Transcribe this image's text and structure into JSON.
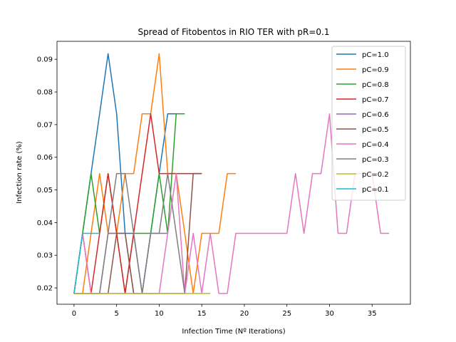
{
  "chart_data": {
    "type": "line",
    "title": "Spread of Fitobentos in RIO TER with pR=0.1",
    "xlabel": "Infection Time (Nº Iterations)",
    "ylabel": "Infection rate (%)",
    "xlim": [
      -2,
      39.5
    ],
    "ylim": [
      0.015,
      0.0955
    ],
    "xticks": [
      0,
      5,
      10,
      15,
      20,
      25,
      30,
      35
    ],
    "yticks": [
      0.02,
      0.03,
      0.04,
      0.05,
      0.06,
      0.07,
      0.08,
      0.09
    ],
    "ytick_labels": [
      "0.02",
      "0.03",
      "0.04",
      "0.05",
      "0.06",
      "0.07",
      "0.08",
      "0.09"
    ],
    "legend_position": "top-right",
    "series": [
      {
        "name": "pC=1.0",
        "color": "#1f77b4",
        "x": [
          0,
          1,
          2,
          3,
          4,
          5,
          6,
          7,
          8,
          9,
          10,
          11,
          12
        ],
        "y": [
          0.0183,
          0.0367,
          0.055,
          0.0733,
          0.0917,
          0.0733,
          0.0367,
          0.0367,
          0.0183,
          0.0367,
          0.055,
          0.0733,
          0.0733
        ]
      },
      {
        "name": "pC=0.9",
        "color": "#ff7f0e",
        "x": [
          0,
          1,
          2,
          3,
          4,
          5,
          6,
          7,
          8,
          9,
          10,
          11,
          12,
          13,
          14,
          15,
          16,
          17,
          18,
          19
        ],
        "y": [
          0.0183,
          0.0183,
          0.0367,
          0.055,
          0.0367,
          0.0367,
          0.055,
          0.055,
          0.0733,
          0.0733,
          0.0917,
          0.055,
          0.055,
          0.0367,
          0.0183,
          0.0367,
          0.0367,
          0.0367,
          0.055,
          0.055
        ]
      },
      {
        "name": "pC=0.8",
        "color": "#2ca02c",
        "x": [
          0,
          1,
          2,
          3,
          4,
          5,
          6,
          7,
          8,
          9,
          10,
          11,
          12,
          13
        ],
        "y": [
          0.0183,
          0.0367,
          0.055,
          0.0367,
          0.055,
          0.0367,
          0.0183,
          0.0367,
          0.0367,
          0.0367,
          0.055,
          0.0367,
          0.0733,
          0.0733
        ]
      },
      {
        "name": "pC=0.7",
        "color": "#d62728",
        "x": [
          0,
          1,
          2,
          3,
          4,
          5,
          6,
          7,
          8,
          9,
          10,
          11,
          12,
          13,
          14,
          15
        ],
        "y": [
          0.0183,
          0.0367,
          0.0183,
          0.0367,
          0.055,
          0.0367,
          0.0183,
          0.0367,
          0.055,
          0.0733,
          0.055,
          0.055,
          0.055,
          0.055,
          0.055,
          0.055
        ]
      },
      {
        "name": "pC=0.6",
        "color": "#9467bd",
        "x": [
          0,
          1,
          2,
          3,
          4,
          5,
          6,
          7,
          8,
          9,
          10,
          11
        ],
        "y": [
          0.0183,
          0.0183,
          0.0183,
          0.0183,
          0.0367,
          0.0367,
          0.0367,
          0.0183,
          0.0183,
          0.0367,
          0.0367,
          0.0367
        ]
      },
      {
        "name": "pC=0.5",
        "color": "#8c564b",
        "x": [
          0,
          1,
          2,
          3,
          4,
          5,
          6,
          7,
          8,
          9,
          10,
          11,
          12,
          13,
          14,
          15
        ],
        "y": [
          0.0183,
          0.0183,
          0.0183,
          0.0183,
          0.0183,
          0.0367,
          0.0367,
          0.0183,
          0.0183,
          0.0183,
          0.0183,
          0.0183,
          0.0183,
          0.0183,
          0.055,
          0.055
        ]
      },
      {
        "name": "pC=0.4",
        "color": "#e377c2",
        "x": [
          0,
          1,
          2,
          3,
          4,
          5,
          6,
          7,
          8,
          9,
          10,
          11,
          12,
          13,
          14,
          15,
          16,
          17,
          18,
          19,
          20,
          21,
          22,
          23,
          24,
          25,
          26,
          27,
          28,
          29,
          30,
          31,
          32,
          33,
          34,
          35,
          36,
          37
        ],
        "y": [
          0.0183,
          0.0367,
          0.0183,
          0.0183,
          0.0183,
          0.0183,
          0.0183,
          0.0183,
          0.0183,
          0.0183,
          0.0183,
          0.0367,
          0.055,
          0.0183,
          0.0367,
          0.0183,
          0.0367,
          0.0183,
          0.0183,
          0.0367,
          0.0367,
          0.0367,
          0.0367,
          0.0367,
          0.0367,
          0.0367,
          0.055,
          0.0367,
          0.055,
          0.055,
          0.0733,
          0.0367,
          0.0367,
          0.055,
          0.055,
          0.055,
          0.0367,
          0.0367
        ]
      },
      {
        "name": "pC=0.3",
        "color": "#7f7f7f",
        "x": [
          0,
          1,
          2,
          3,
          4,
          5,
          6,
          7,
          8,
          9,
          10,
          11,
          12,
          13
        ],
        "y": [
          0.0183,
          0.0183,
          0.0183,
          0.0183,
          0.0367,
          0.055,
          0.055,
          0.0367,
          0.0183,
          0.0367,
          0.0367,
          0.055,
          0.0367,
          0.0183
        ]
      },
      {
        "name": "pC=0.2",
        "color": "#bcbd22",
        "x": [
          0,
          1,
          2,
          3,
          4,
          5,
          6,
          7,
          8,
          9,
          10,
          11,
          12,
          13,
          14,
          15,
          16
        ],
        "y": [
          0.0183,
          0.0183,
          0.0183,
          0.0183,
          0.0183,
          0.0183,
          0.0183,
          0.0183,
          0.0183,
          0.0183,
          0.0183,
          0.0183,
          0.0183,
          0.0183,
          0.0183,
          0.0183,
          0.0183
        ]
      },
      {
        "name": "pC=0.1",
        "color": "#17becf",
        "x": [
          0,
          1,
          2,
          3
        ],
        "y": [
          0.0183,
          0.0367,
          0.0367,
          0.0367
        ]
      }
    ]
  }
}
